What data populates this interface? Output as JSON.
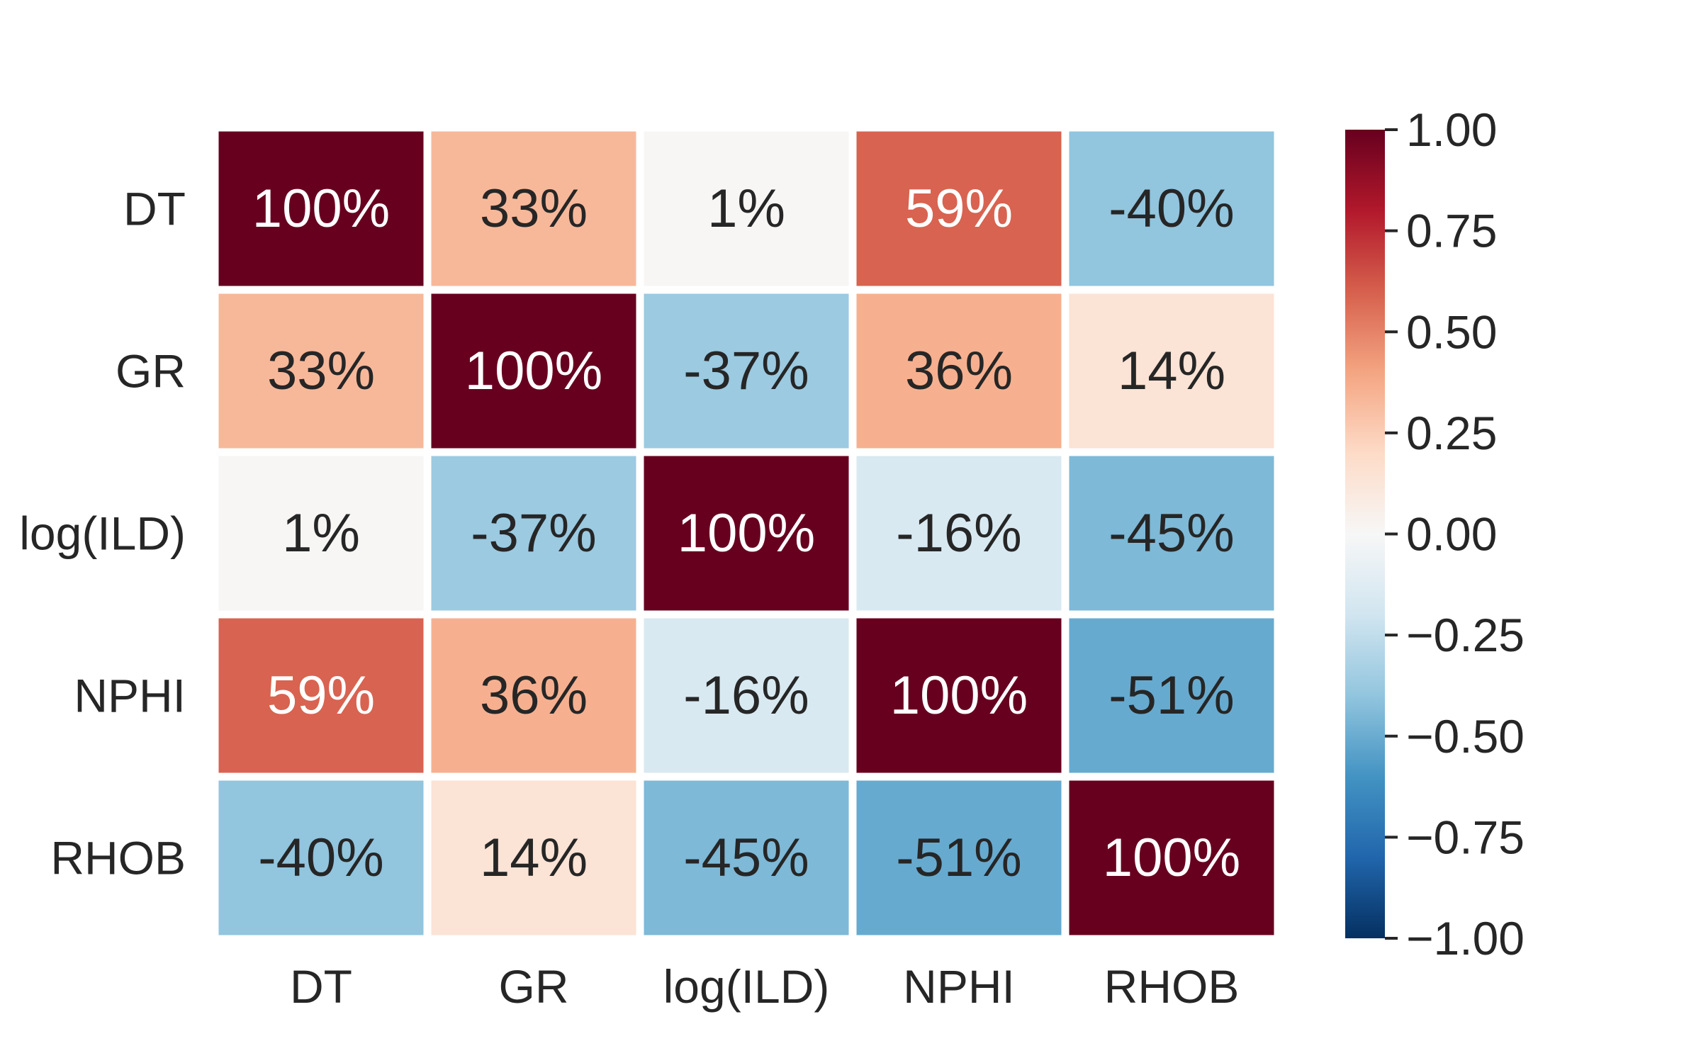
{
  "chart_data": {
    "type": "heatmap",
    "title": "",
    "xlabel": "",
    "ylabel": "",
    "x_categories": [
      "DT",
      "GR",
      "log(ILD)",
      "NPHI",
      "RHOB"
    ],
    "y_categories": [
      "DT",
      "GR",
      "log(ILD)",
      "NPHI",
      "RHOB"
    ],
    "values": [
      [
        1.0,
        0.33,
        0.01,
        0.59,
        -0.4
      ],
      [
        0.33,
        1.0,
        -0.37,
        0.36,
        0.14
      ],
      [
        0.01,
        -0.37,
        1.0,
        -0.16,
        -0.45
      ],
      [
        0.59,
        0.36,
        -0.16,
        1.0,
        -0.51
      ],
      [
        -0.4,
        0.14,
        -0.45,
        -0.51,
        1.0
      ]
    ],
    "annotations": [
      [
        "100%",
        "33%",
        "1%",
        "59%",
        "-40%"
      ],
      [
        "33%",
        "100%",
        "-37%",
        "36%",
        "14%"
      ],
      [
        "1%",
        "-37%",
        "100%",
        "-16%",
        "-45%"
      ],
      [
        "59%",
        "36%",
        "-16%",
        "100%",
        "-51%"
      ],
      [
        "-40%",
        "14%",
        "-45%",
        "-51%",
        "100%"
      ]
    ],
    "colorbar": {
      "range": [
        -1.0,
        1.0
      ],
      "ticks": [
        1.0,
        0.75,
        0.5,
        0.25,
        0.0,
        -0.25,
        -0.5,
        -0.75,
        -1.0
      ],
      "tick_labels": [
        "1.00",
        "0.75",
        "0.50",
        "0.25",
        "0.00",
        "−0.25",
        "−0.50",
        "−0.75",
        "−1.00"
      ],
      "colormap": "RdBu_r",
      "colormap_stops": [
        "#053061",
        "#2166ac",
        "#4393c3",
        "#92c5de",
        "#d1e5f0",
        "#f7f7f7",
        "#fddbc7",
        "#f4a582",
        "#d6604d",
        "#b2182b",
        "#67001f"
      ]
    },
    "grid": false,
    "legend": "colorbar-right"
  }
}
